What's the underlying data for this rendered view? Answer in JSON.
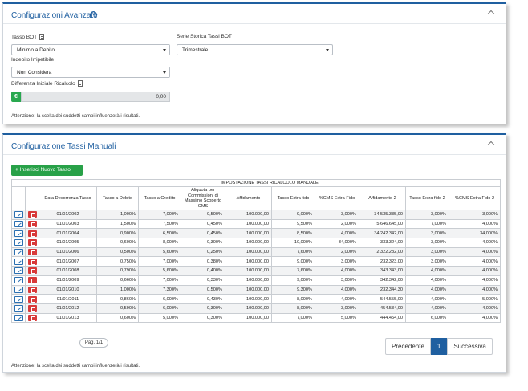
{
  "advanced": {
    "title": "Configurazioni Avanzate",
    "help_glyph": "?",
    "tasso_bot_label": "Tasso BOT",
    "tasso_bot_value": "Minimo a Debito",
    "serie_label": "Serie Storica Tassi BOT",
    "serie_value": "Trimestrale",
    "indebito_label": "Indebito Irripetibile",
    "indebito_value": "Non Considera",
    "differenza_label": "Differenza Iniziale Ricalcolo",
    "currency_symbol": "€",
    "differenza_value": "0,00",
    "note": "Attenzione: la scelta dei suddetti campi influenzerà i risultati."
  },
  "manual": {
    "title": "Configurazione Tassi Manuali",
    "add_button": "Inserisci Nuovo Tasso",
    "add_glyph": "+",
    "table_title": "IMPOSTAZIONE TASSI RICALCOLO MANUALE",
    "columns": [
      "Data Decorrenza Tasso",
      "Tasso a Debito",
      "Tasso a Credito",
      "Aliquota per Commissioni di Massimo Scoperto CMS",
      "Affidamento",
      "Tasso Extra fido",
      "%CMS Extra Fido",
      "Affidamento 2",
      "Tasso Extra fido 2",
      "%CMS Extra Fido 2"
    ],
    "rows": [
      [
        "01/01/2002",
        "1,000%",
        "7,000%",
        "0,500%",
        "100.000,00",
        "9,000%",
        "3,000%",
        "34.535.335,00",
        "3,000%",
        "3,000%"
      ],
      [
        "01/01/2003",
        "1,500%",
        "7,500%",
        "0,450%",
        "100.000,00",
        "9,500%",
        "2,000%",
        "5.646.645,00",
        "7,000%",
        "4,000%"
      ],
      [
        "01/01/2004",
        "0,900%",
        "6,500%",
        "0,450%",
        "100.000,00",
        "8,500%",
        "4,000%",
        "34.242.342,00",
        "3,000%",
        "34,000%"
      ],
      [
        "01/01/2005",
        "0,600%",
        "8,000%",
        "0,300%",
        "100.000,00",
        "10,000%",
        "34,000%",
        "333.324,00",
        "3,000%",
        "4,000%"
      ],
      [
        "01/01/2006",
        "0,500%",
        "5,600%",
        "0,250%",
        "100.000,00",
        "7,600%",
        "2,000%",
        "2.322.232,00",
        "3,000%",
        "4,000%"
      ],
      [
        "01/01/2007",
        "0,750%",
        "7,000%",
        "0,380%",
        "100.000,00",
        "9,000%",
        "3,000%",
        "232.323,00",
        "3,000%",
        "4,000%"
      ],
      [
        "01/01/2008",
        "0,790%",
        "5,600%",
        "0,400%",
        "100.000,00",
        "7,600%",
        "4,000%",
        "343.343,00",
        "4,000%",
        "4,000%"
      ],
      [
        "01/01/2009",
        "0,660%",
        "7,000%",
        "0,330%",
        "100.000,00",
        "9,000%",
        "3,000%",
        "342.342,00",
        "4,000%",
        "4,000%"
      ],
      [
        "01/01/2010",
        "1,000%",
        "7,300%",
        "0,500%",
        "100.000,00",
        "9,300%",
        "4,000%",
        "232.344,30",
        "4,000%",
        "4,000%"
      ],
      [
        "01/01/2011",
        "0,860%",
        "6,000%",
        "0,430%",
        "100.000,00",
        "8,000%",
        "4,000%",
        "544.555,00",
        "4,000%",
        "5,000%"
      ],
      [
        "01/01/2012",
        "0,590%",
        "6,000%",
        "0,300%",
        "100.000,00",
        "8,000%",
        "3,000%",
        "454.534,00",
        "4,000%",
        "4,000%"
      ],
      [
        "01/01/2013",
        "0,600%",
        "5,000%",
        "0,300%",
        "100.000,00",
        "7,000%",
        "5,000%",
        "444.454,00",
        "6,000%",
        "4,000%"
      ]
    ],
    "page_info": "Pag. 1/1",
    "pager": {
      "prev": "Precedente",
      "current": "1",
      "next": "Successiva"
    },
    "note": "Attenzione: la scelta dei suddetti campi influenzerà i risultati."
  },
  "colors": {
    "accent": "#1f5fa0",
    "add_button": "#28a148",
    "delete": "#d83a3a",
    "euro_addon": "#29a84f"
  },
  "icons": {
    "collapse": "chevron-up-icon",
    "help": "help-circle-icon",
    "info": "document-icon",
    "edit": "edit-icon",
    "delete": "trash-icon"
  }
}
